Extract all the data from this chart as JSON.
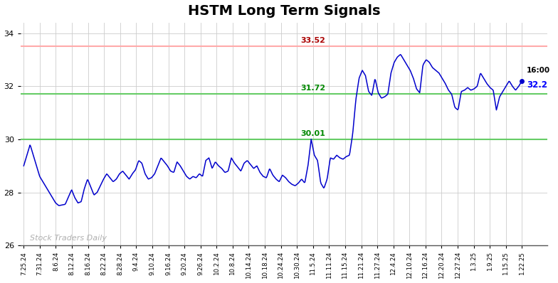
{
  "title": "HSTM Long Term Signals",
  "title_fontsize": 14,
  "title_fontweight": "bold",
  "red_line": 33.52,
  "green_line1": 31.72,
  "green_line2": 30.01,
  "last_price": 32.2,
  "last_label": "16:00",
  "watermark": "Stock Traders Daily",
  "ylim": [
    26,
    34.4
  ],
  "yticks": [
    26,
    28,
    30,
    32,
    34
  ],
  "background_color": "#ffffff",
  "grid_color": "#cccccc",
  "line_color": "#0000cc",
  "red_line_color": "#ffaaaa",
  "green_line_color": "#66cc66",
  "x_tick_labels": [
    "7.25.24",
    "7.31.24",
    "8.6.24",
    "8.12.24",
    "8.16.24",
    "8.22.24",
    "8.28.24",
    "9.4.24",
    "9.10.24",
    "9.16.24",
    "9.20.24",
    "9.26.24",
    "10.2.24",
    "10.8.24",
    "10.14.24",
    "10.18.24",
    "10.24.24",
    "10.30.24",
    "11.5.24",
    "11.11.24",
    "11.15.24",
    "11.21.24",
    "11.27.24",
    "12.4.24",
    "12.10.24",
    "12.16.24",
    "12.20.24",
    "12.27.24",
    "1.3.25",
    "1.9.25",
    "1.15.25",
    "1.22.25"
  ],
  "key_points": [
    [
      0,
      29.0
    ],
    [
      2,
      29.8
    ],
    [
      5,
      28.6
    ],
    [
      8,
      28.0
    ],
    [
      10,
      27.6
    ],
    [
      11,
      27.5
    ],
    [
      13,
      27.55
    ],
    [
      15,
      28.1
    ],
    [
      16,
      27.8
    ],
    [
      17,
      27.6
    ],
    [
      18,
      27.65
    ],
    [
      19,
      28.15
    ],
    [
      20,
      28.5
    ],
    [
      21,
      28.2
    ],
    [
      22,
      27.9
    ],
    [
      23,
      28.0
    ],
    [
      24,
      28.25
    ],
    [
      25,
      28.5
    ],
    [
      26,
      28.7
    ],
    [
      27,
      28.55
    ],
    [
      28,
      28.4
    ],
    [
      29,
      28.5
    ],
    [
      30,
      28.7
    ],
    [
      31,
      28.8
    ],
    [
      32,
      28.65
    ],
    [
      33,
      28.5
    ],
    [
      34,
      28.7
    ],
    [
      35,
      28.85
    ],
    [
      36,
      29.2
    ],
    [
      37,
      29.1
    ],
    [
      38,
      28.7
    ],
    [
      39,
      28.5
    ],
    [
      40,
      28.55
    ],
    [
      41,
      28.7
    ],
    [
      42,
      29.0
    ],
    [
      43,
      29.3
    ],
    [
      44,
      29.15
    ],
    [
      45,
      29.0
    ],
    [
      46,
      28.8
    ],
    [
      47,
      28.75
    ],
    [
      48,
      29.15
    ],
    [
      49,
      29.0
    ],
    [
      50,
      28.8
    ],
    [
      51,
      28.6
    ],
    [
      52,
      28.5
    ],
    [
      53,
      28.6
    ],
    [
      54,
      28.55
    ],
    [
      55,
      28.7
    ],
    [
      56,
      28.6
    ],
    [
      57,
      29.2
    ],
    [
      58,
      29.3
    ],
    [
      59,
      28.9
    ],
    [
      60,
      29.15
    ],
    [
      61,
      29.0
    ],
    [
      62,
      28.9
    ],
    [
      63,
      28.75
    ],
    [
      64,
      28.8
    ],
    [
      65,
      29.3
    ],
    [
      66,
      29.1
    ],
    [
      67,
      28.95
    ],
    [
      68,
      28.8
    ],
    [
      69,
      29.1
    ],
    [
      70,
      29.2
    ],
    [
      71,
      29.05
    ],
    [
      72,
      28.9
    ],
    [
      73,
      29.0
    ],
    [
      74,
      28.75
    ],
    [
      75,
      28.6
    ],
    [
      76,
      28.55
    ],
    [
      77,
      28.9
    ],
    [
      78,
      28.65
    ],
    [
      79,
      28.5
    ],
    [
      80,
      28.4
    ],
    [
      81,
      28.65
    ],
    [
      82,
      28.55
    ],
    [
      83,
      28.4
    ],
    [
      84,
      28.3
    ],
    [
      85,
      28.25
    ],
    [
      86,
      28.35
    ],
    [
      87,
      28.5
    ],
    [
      88,
      28.35
    ],
    [
      89,
      29.0
    ],
    [
      90,
      30.01
    ],
    [
      91,
      29.4
    ],
    [
      92,
      29.2
    ],
    [
      93,
      28.35
    ],
    [
      94,
      28.15
    ],
    [
      95,
      28.5
    ],
    [
      96,
      29.3
    ],
    [
      97,
      29.25
    ],
    [
      98,
      29.4
    ],
    [
      99,
      29.3
    ],
    [
      100,
      29.25
    ],
    [
      101,
      29.35
    ],
    [
      102,
      29.4
    ],
    [
      103,
      30.2
    ],
    [
      104,
      31.5
    ],
    [
      105,
      32.3
    ],
    [
      106,
      32.6
    ],
    [
      107,
      32.4
    ],
    [
      108,
      31.8
    ],
    [
      109,
      31.65
    ],
    [
      110,
      32.3
    ],
    [
      111,
      31.75
    ],
    [
      112,
      31.55
    ],
    [
      113,
      31.6
    ],
    [
      114,
      31.7
    ],
    [
      115,
      32.5
    ],
    [
      116,
      32.9
    ],
    [
      117,
      33.1
    ],
    [
      118,
      33.2
    ],
    [
      119,
      33.0
    ],
    [
      120,
      32.8
    ],
    [
      121,
      32.6
    ],
    [
      122,
      32.3
    ],
    [
      123,
      31.9
    ],
    [
      124,
      31.75
    ],
    [
      125,
      32.8
    ],
    [
      126,
      33.0
    ],
    [
      127,
      32.9
    ],
    [
      128,
      32.7
    ],
    [
      129,
      32.6
    ],
    [
      130,
      32.5
    ],
    [
      131,
      32.3
    ],
    [
      132,
      32.1
    ],
    [
      133,
      31.85
    ],
    [
      134,
      31.7
    ],
    [
      135,
      31.2
    ],
    [
      136,
      31.1
    ],
    [
      137,
      31.8
    ],
    [
      138,
      31.85
    ],
    [
      139,
      31.95
    ],
    [
      140,
      31.85
    ],
    [
      141,
      31.9
    ],
    [
      142,
      32.0
    ],
    [
      143,
      32.5
    ],
    [
      144,
      32.3
    ],
    [
      145,
      32.1
    ],
    [
      146,
      31.95
    ],
    [
      147,
      31.85
    ],
    [
      148,
      31.1
    ],
    [
      149,
      31.6
    ],
    [
      150,
      31.8
    ],
    [
      151,
      32.0
    ],
    [
      152,
      32.2
    ],
    [
      153,
      32.0
    ],
    [
      154,
      31.85
    ],
    [
      155,
      32.0
    ],
    [
      156,
      32.2
    ]
  ]
}
